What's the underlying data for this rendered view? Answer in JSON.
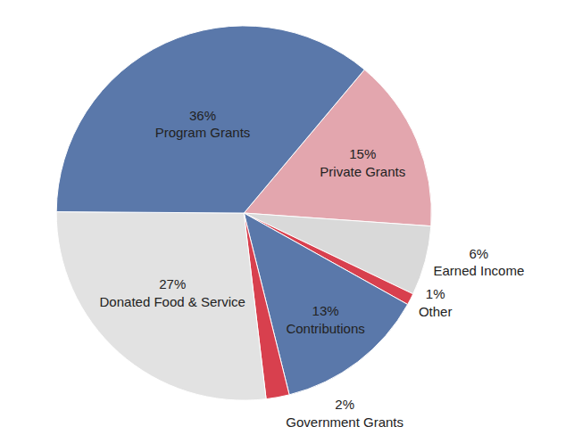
{
  "chart_data": {
    "type": "pie",
    "categories": [
      "Private Grants",
      "Earned Income",
      "Other",
      "Contributions",
      "Government Grants",
      "Donated Food & Service",
      "Program Grants"
    ],
    "values": [
      15,
      6,
      1,
      13,
      2,
      27,
      36
    ],
    "value_labels": [
      "15%",
      "6%",
      "1%",
      "13%",
      "2%",
      "27%",
      "36%"
    ],
    "colors": [
      "#e3a6ae",
      "#d9d9d9",
      "#d8404e",
      "#5a78aa",
      "#d8404e",
      "#e2e2e2",
      "#5a78aa"
    ],
    "data_labels": true
  }
}
